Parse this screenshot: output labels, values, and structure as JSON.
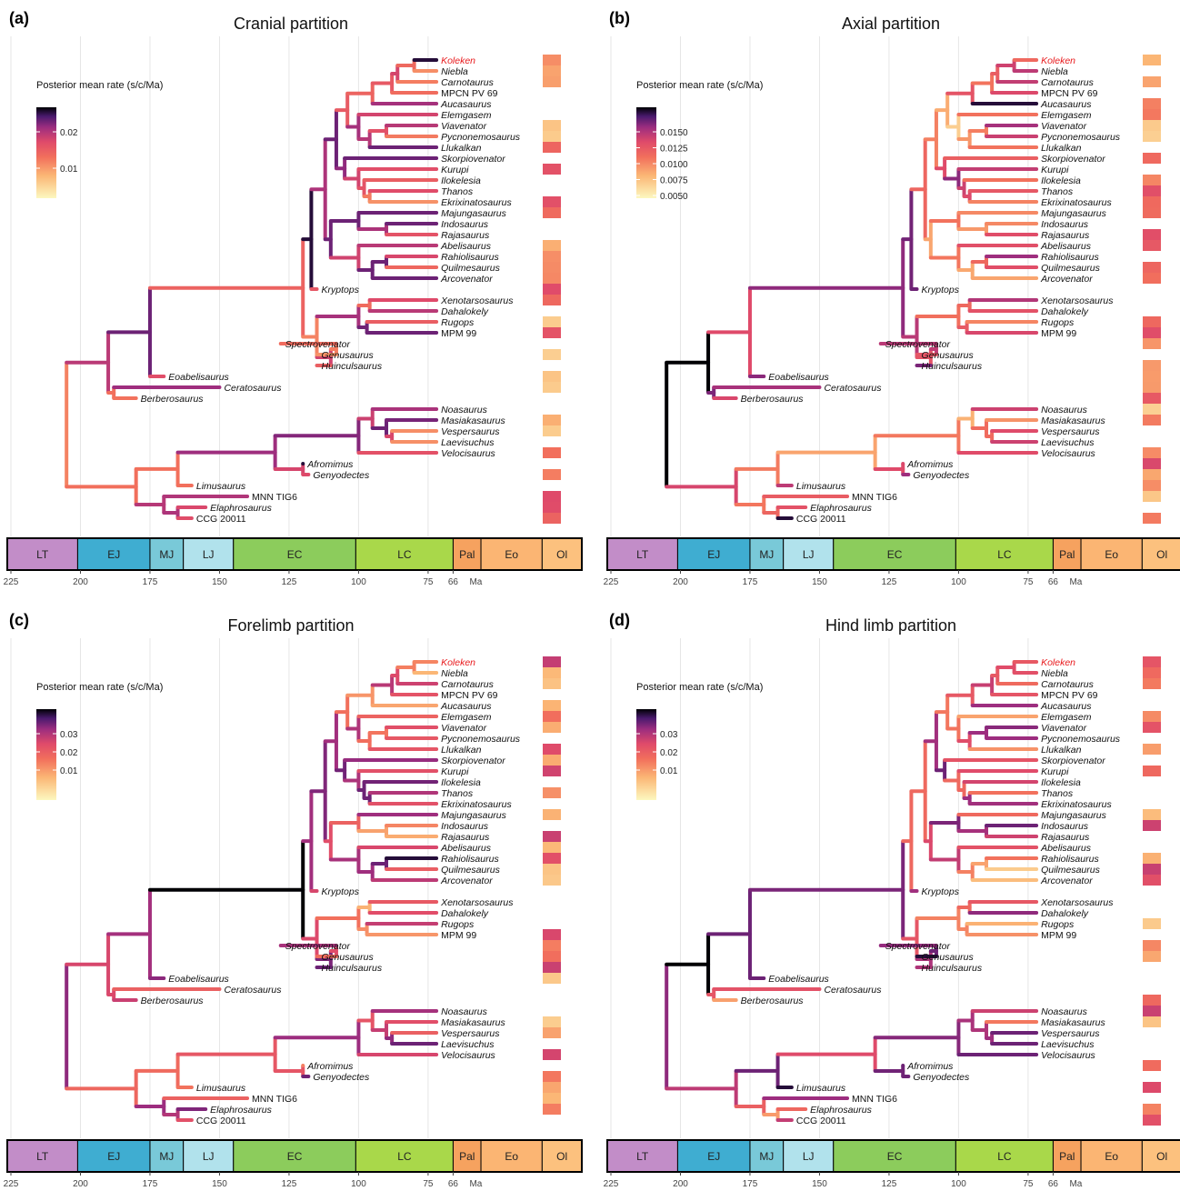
{
  "panels": [
    {
      "letter": "(a)",
      "title": "Cranial partition",
      "legend_title": "Posterior mean rate (s/c/Ma)",
      "legend_ticks": [
        "0.02",
        "0.01"
      ]
    },
    {
      "letter": "(b)",
      "title": "Axial partition",
      "legend_title": "Posterior mean rate (s/c/Ma)",
      "legend_ticks": [
        "0.0150",
        "0.0125",
        "0.0100",
        "0.0075",
        "0.0050"
      ]
    },
    {
      "letter": "(c)",
      "title": "Forelimb partition",
      "legend_title": "Posterior mean rate (s/c/Ma)",
      "legend_ticks": [
        "0.03",
        "0.02",
        "0.01"
      ]
    },
    {
      "letter": "(d)",
      "title": "Hind limb partition",
      "legend_title": "Posterior mean rate (s/c/Ma)",
      "legend_ticks": [
        "0.03",
        "0.02",
        "0.01"
      ]
    }
  ],
  "taxa": [
    "Koleken",
    "Niebla",
    "Carnotaurus",
    "MPCN PV 69",
    "Aucasaurus",
    "Elemgasem",
    "Viavenator",
    "Pycnonemosaurus",
    "Llukalkan",
    "Skorpiovenator",
    "Kurupi",
    "Ilokelesia",
    "Thanos",
    "Ekrixinatosaurus",
    "Majungasaurus",
    "Indosaurus",
    "Rajasaurus",
    "Abelisaurus",
    "Rahiolisaurus",
    "Quilmesaurus",
    "Arcovenator",
    "Kryptops",
    "Xenotarsosaurus",
    "Dahalokely",
    "Rugops",
    "MPM 99",
    "Spectrovenator",
    "Genusaurus",
    "Huinculsaurus",
    "Eoabelisaurus",
    "Ceratosaurus",
    "Berberosaurus",
    "Noasaurus",
    "Masiakasaurus",
    "Vespersaurus",
    "Laevisuchus",
    "Velocisaurus",
    "Afromimus",
    "Genyodectes",
    "Limusaurus",
    "MNN TIG6",
    "Elaphrosaurus",
    "CCG 20011"
  ],
  "highlight_taxon": "Koleken",
  "periods": [
    {
      "abbr": "LT",
      "start": 225,
      "end": 201,
      "color": "#c28dc8"
    },
    {
      "abbr": "EJ",
      "start": 201,
      "end": 175,
      "color": "#3fadd1"
    },
    {
      "abbr": "MJ",
      "start": 175,
      "end": 163,
      "color": "#79c9d8"
    },
    {
      "abbr": "LJ",
      "start": 163,
      "end": 145,
      "color": "#b1e2ec"
    },
    {
      "abbr": "EC",
      "start": 145,
      "end": 101,
      "color": "#8ccc5c"
    },
    {
      "abbr": "LC",
      "start": 101,
      "end": 66,
      "color": "#a9d84a"
    },
    {
      "abbr": "Pal",
      "start": 66,
      "end": 56,
      "color": "#f6a25f"
    },
    {
      "abbr": "Eo",
      "start": 56,
      "end": 34,
      "color": "#fbb573"
    },
    {
      "abbr": "Ol",
      "start": 34,
      "end": 23,
      "color": "#fcc17e"
    }
  ],
  "time_ticks": [
    "225",
    "200",
    "175",
    "150",
    "125",
    "100",
    "75",
    "66"
  ],
  "time_unit": "Ma",
  "colors": {
    "low": "#fcf8c0",
    "high": "#000004",
    "highlight": "#e8191c"
  }
}
